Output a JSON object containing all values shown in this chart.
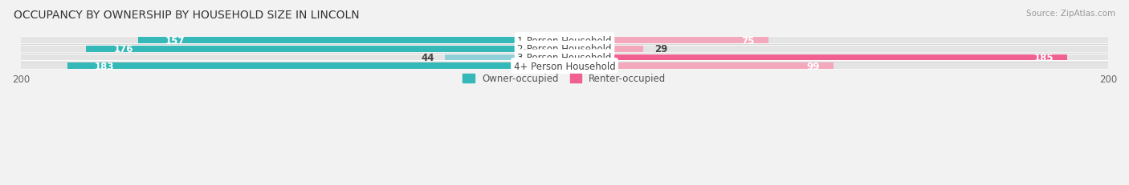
{
  "title": "OCCUPANCY BY OWNERSHIP BY HOUSEHOLD SIZE IN LINCOLN",
  "source": "Source: ZipAtlas.com",
  "categories": [
    "1-Person Household",
    "2-Person Household",
    "3-Person Household",
    "4+ Person Household"
  ],
  "owner_values": [
    157,
    176,
    44,
    183
  ],
  "renter_values": [
    75,
    29,
    185,
    99
  ],
  "max_val": 200,
  "owner_color": "#35b8b8",
  "owner_color_light": "#90d0d8",
  "renter_color": "#f06090",
  "renter_color_light": "#f4a8bc",
  "bar_height": 0.72,
  "background_color": "#f2f2f2",
  "bar_bg_color": "#e4e4e4",
  "row_bg_color": "#ffffff",
  "sep_color": "#d8d8d8",
  "title_fontsize": 10,
  "label_fontsize": 8.5,
  "value_fontsize": 8.5,
  "tick_fontsize": 8.5,
  "legend_fontsize": 8.5
}
